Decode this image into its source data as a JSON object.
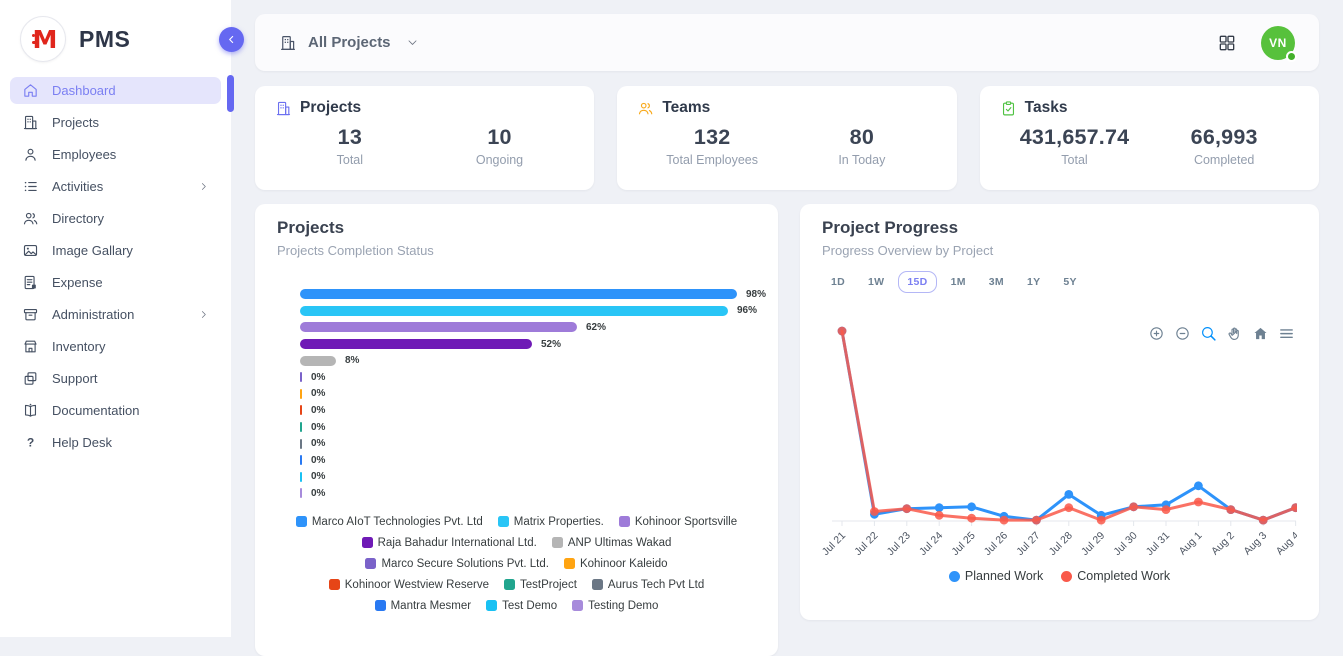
{
  "app": {
    "name": "PMS"
  },
  "sidebar": {
    "items": [
      {
        "label": "Dashboard",
        "icon": "home-icon",
        "active": true,
        "submenu": false
      },
      {
        "label": "Projects",
        "icon": "building-icon",
        "active": false,
        "submenu": false
      },
      {
        "label": "Employees",
        "icon": "user-icon",
        "active": false,
        "submenu": false
      },
      {
        "label": "Activities",
        "icon": "list-icon",
        "active": false,
        "submenu": true
      },
      {
        "label": "Directory",
        "icon": "users-icon",
        "active": false,
        "submenu": false
      },
      {
        "label": "Image Gallary",
        "icon": "image-icon",
        "active": false,
        "submenu": false
      },
      {
        "label": "Expense",
        "icon": "receipt-icon",
        "active": false,
        "submenu": false
      },
      {
        "label": "Administration",
        "icon": "archive-icon",
        "active": false,
        "submenu": true
      },
      {
        "label": "Inventory",
        "icon": "store-icon",
        "active": false,
        "submenu": false
      },
      {
        "label": "Support",
        "icon": "copy-icon",
        "active": false,
        "submenu": false
      },
      {
        "label": "Documentation",
        "icon": "book-icon",
        "active": false,
        "submenu": false
      },
      {
        "label": "Help Desk",
        "icon": "help-icon",
        "active": false,
        "submenu": false
      }
    ]
  },
  "topbar": {
    "project_filter": "All Projects",
    "avatar_initials": "VN"
  },
  "stats": [
    {
      "title": "Projects",
      "icon": "building-icon",
      "icon_color": "#6C70F0",
      "metrics": [
        {
          "value": "13",
          "label": "Total"
        },
        {
          "value": "10",
          "label": "Ongoing"
        }
      ]
    },
    {
      "title": "Teams",
      "icon": "team-icon",
      "icon_color": "#F8A91B",
      "metrics": [
        {
          "value": "132",
          "label": "Total Employees"
        },
        {
          "value": "80",
          "label": "In Today"
        }
      ]
    },
    {
      "title": "Tasks",
      "icon": "clipboard-check-icon",
      "icon_color": "#4FC242",
      "metrics": [
        {
          "value": "431,657.74",
          "label": "Total"
        },
        {
          "value": "66,993",
          "label": "Completed"
        }
      ]
    }
  ],
  "chart_data": [
    {
      "type": "bar",
      "orientation": "horizontal",
      "title": "Projects",
      "subtitle": "Projects Completion Status",
      "unit": "%",
      "xlim": [
        0,
        100
      ],
      "legend_position": "bottom",
      "categories": [
        "Marco AIoT Technologies Pvt. Ltd",
        "Matrix Properties.",
        "Kohinoor Sportsville",
        "Raja Bahadur International Ltd.",
        "ANP Ultimas Wakad",
        "Marco Secure Solutions Pvt. Ltd.",
        "Kohinoor Kaleido",
        "Kohinoor Westview Reserve",
        "TestProject",
        "Aurus Tech Pvt Ltd",
        "Mantra Mesmer",
        "Test Demo",
        "Testing Demo"
      ],
      "values": [
        98,
        96,
        62,
        52,
        8,
        0,
        0,
        0,
        0,
        0,
        0,
        0,
        0
      ],
      "data_labels": [
        "98%",
        "96%",
        "62%",
        "52%",
        "8%",
        "0%",
        "0%",
        "0%",
        "0%",
        "0%",
        "0%",
        "0%",
        "0%"
      ],
      "colors": [
        "#2E93FA",
        "#29C5F6",
        "#9E7BD9",
        "#6F1AB6",
        "#B5B5B5",
        "#7A62C9",
        "#FFA412",
        "#E64517",
        "#21A58E",
        "#6B7785",
        "#2979F2",
        "#19C1F3",
        "#A78BDB"
      ]
    },
    {
      "type": "line",
      "title": "Project Progress",
      "subtitle": "Progress Overview by Project",
      "ranges": [
        "1D",
        "1W",
        "15D",
        "1M",
        "3M",
        "1Y",
        "5Y"
      ],
      "selected_range": "15D",
      "toolbar": [
        "zoom-in-icon",
        "zoom-out-icon",
        "selection-zoom-icon",
        "pan-icon",
        "home-solid-icon",
        "menu-icon"
      ],
      "grid": false,
      "ylim": [
        0,
        105
      ],
      "legend_position": "bottom",
      "x": [
        "Jul 21",
        "Jul 22",
        "Jul 23",
        "Jul 24",
        "Jul 25",
        "Jul 26",
        "Jul 27",
        "Jul 28",
        "Jul 29",
        "Jul 30",
        "Jul 31",
        "Aug 1",
        "Aug 2",
        "Aug 3",
        "Aug 4"
      ],
      "series": [
        {
          "name": "Planned Work",
          "color": "#2E93FA",
          "values": [
            100,
            3.5,
            6.5,
            7,
            7.5,
            2.5,
            0.5,
            14,
            3,
            7.5,
            8.5,
            18.5,
            6,
            0.5,
            7
          ]
        },
        {
          "name": "Completed Work",
          "color": "#F9594A",
          "values": [
            100,
            5,
            6.5,
            3,
            1.5,
            0.5,
            0.5,
            7,
            0.5,
            7.5,
            6,
            10,
            6,
            0.5,
            7
          ]
        }
      ]
    }
  ]
}
